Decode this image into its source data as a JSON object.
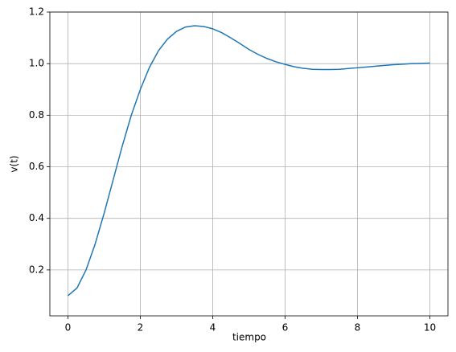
{
  "chart_data": {
    "type": "line",
    "x_label": "tiempo",
    "y_label": "v(t)",
    "x": [
      0,
      0.25,
      0.5,
      0.75,
      1,
      1.25,
      1.5,
      1.75,
      2,
      2.25,
      2.5,
      2.75,
      3,
      3.25,
      3.5,
      3.75,
      4,
      4.25,
      4.5,
      4.75,
      5,
      5.25,
      5.5,
      5.75,
      6,
      6.25,
      6.5,
      6.75,
      7,
      7.25,
      7.5,
      7.75,
      8,
      8.25,
      8.5,
      8.75,
      9,
      9.25,
      9.5,
      9.75,
      10
    ],
    "series": [
      {
        "color": "#1f77b4",
        "values": [
          0.1,
          0.13,
          0.2,
          0.3,
          0.42,
          0.55,
          0.68,
          0.8,
          0.9,
          0.985,
          1.05,
          1.095,
          1.125,
          1.142,
          1.147,
          1.144,
          1.135,
          1.12,
          1.1,
          1.078,
          1.055,
          1.036,
          1.02,
          1.007,
          0.997,
          0.988,
          0.982,
          0.978,
          0.977,
          0.977,
          0.978,
          0.981,
          0.984,
          0.987,
          0.99,
          0.993,
          0.996,
          0.998,
          1.0,
          1.001,
          1.002
        ]
      }
    ],
    "xlim": [
      -0.5,
      10.5
    ],
    "xticks": [
      0,
      2,
      4,
      6,
      8,
      10
    ],
    "ylim": [
      0.022,
      1.2
    ],
    "yticks": [
      0.2,
      0.4,
      0.6,
      0.8,
      {
        "value": 1,
        "label": "1.0"
      },
      1.2
    ],
    "grid": true
  }
}
